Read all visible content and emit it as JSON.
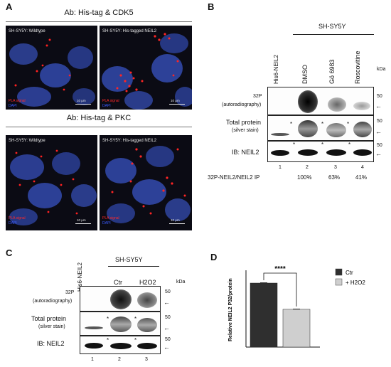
{
  "panel_a": {
    "letter": "A",
    "top": {
      "title": "Ab: His-tag & CDK5",
      "left_label": "SH-SY5Y: Wildtype",
      "right_label": "SH-SY5Y: His-tagged NEIL2",
      "pla_label": "PLA signal",
      "dapi_label": "DAPI",
      "scale_left": "10 μm",
      "scale_right": "10 μm"
    },
    "bottom": {
      "title": "Ab: His-tag & PKC",
      "left_label": "SH-SY5Y: Wildtype",
      "right_label": "SH-SY5Y: His-tagged NEIL2",
      "pla_label": "PLA signal",
      "dapi_label": "DAPI",
      "scale_left": "10 μm",
      "scale_right": "10 μm"
    }
  },
  "panel_b": {
    "letter": "B",
    "cell_line": "SH-SY5Y",
    "lane_headers": [
      "His6-NEIL2",
      "DMSO",
      "Gö 6983",
      "Roscovitine"
    ],
    "kda": "kDa",
    "rows": [
      {
        "label_main": "32P",
        "label_sub": "(autoradiography)",
        "marker": "50"
      },
      {
        "label_main": "Total protein",
        "label_sub": "(silver stain)",
        "marker": "50"
      },
      {
        "label_main": "IB: NEIL2",
        "label_sub": "",
        "marker": "50"
      }
    ],
    "lane_numbers": [
      "1",
      "2",
      "3",
      "4"
    ],
    "ratio_label": "32P-NEIL2/NEIL2 IP",
    "ratios": [
      "100%",
      "63%",
      "41%"
    ],
    "arrow": "←",
    "star": "*"
  },
  "panel_c": {
    "letter": "C",
    "cell_line": "SH-SY5Y",
    "lane_headers": [
      "His6-NEIL2",
      "Ctr",
      "H2O2"
    ],
    "kda": "kDa",
    "rows": [
      {
        "label_main": "32P",
        "label_sub": "(autoradiography)",
        "marker": "50"
      },
      {
        "label_main": "Total protein",
        "label_sub": "(silver stain)",
        "marker": "50"
      },
      {
        "label_main": "IB: NEIL2",
        "label_sub": "",
        "marker": "50"
      }
    ],
    "lane_numbers": [
      "1",
      "2",
      "3"
    ],
    "arrow": "←",
    "star": "*"
  },
  "panel_d": {
    "letter": "D",
    "significance": "****",
    "chart_data": {
      "type": "bar",
      "categories": [
        "Ctr",
        "+ H2O2"
      ],
      "values": [
        1.0,
        0.59
      ],
      "errors": [
        0.005,
        0.005
      ],
      "colors": [
        "#2f2f2f",
        "#cfcfcf"
      ],
      "ylabel": "Relative NEIL2 P32/protein",
      "ylim": [
        0,
        1.2
      ],
      "legend": [
        {
          "name": "Ctr",
          "color": "#2f2f2f"
        },
        {
          "name": "+ H2O2",
          "color": "#cfcfcf"
        }
      ],
      "legend_position": "top-right"
    }
  }
}
